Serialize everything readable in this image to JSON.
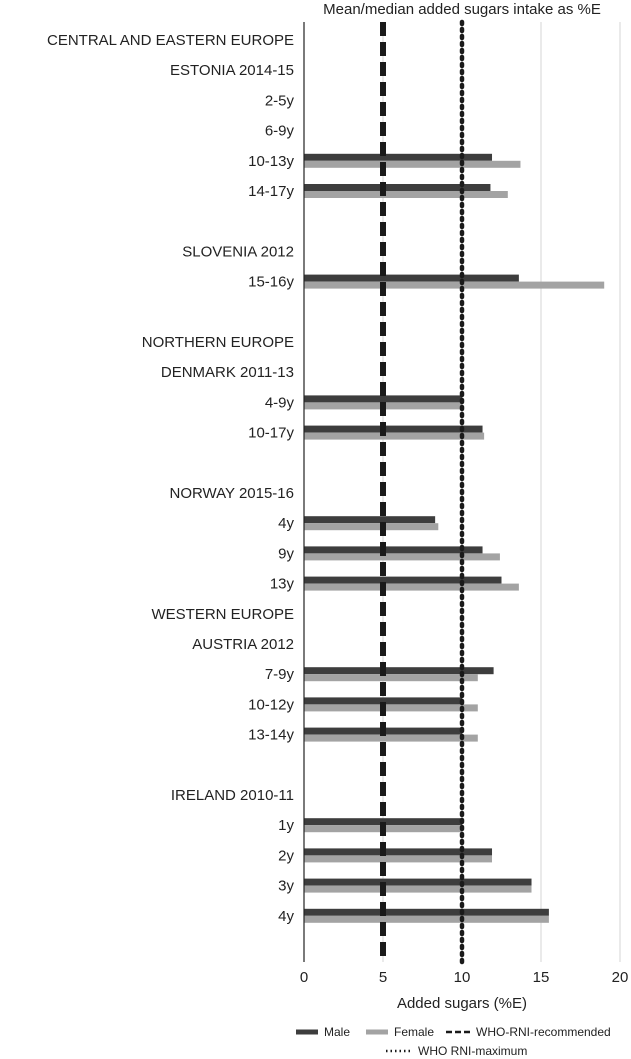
{
  "chart_data": {
    "type": "bar",
    "orientation": "horizontal",
    "title": "Mean/median added sugars intake as %E",
    "xlabel": "Added sugars (%E)",
    "ylabel": "",
    "xlim": [
      0,
      20
    ],
    "xticks": [
      0,
      5,
      10,
      15,
      20
    ],
    "grid": "vertical",
    "legend_position": "bottom",
    "categories": [
      "CENTRAL AND EASTERN EUROPE",
      "ESTONIA 2014-15",
      "2-5y",
      "6-9y",
      "10-13y",
      "14-17y",
      "",
      "SLOVENIA 2012",
      "15-16y",
      "",
      "NORTHERN EUROPE",
      "DENMARK 2011-13",
      "4-9y",
      "10-17y",
      "",
      "NORWAY 2015-16",
      "4y",
      "9y",
      "13y",
      "WESTERN EUROPE",
      "AUSTRIA 2012",
      "7-9y",
      "10-12y",
      "13-14y",
      "",
      "IRELAND 2010-11",
      "1y",
      "2y",
      "3y",
      "4y",
      ""
    ],
    "series": [
      {
        "name": "Male",
        "color": "#3d3d3d",
        "values": [
          null,
          null,
          null,
          null,
          11.9,
          11.8,
          null,
          null,
          13.6,
          null,
          null,
          null,
          10.0,
          11.3,
          null,
          null,
          8.3,
          11.3,
          12.5,
          null,
          null,
          12.0,
          10.0,
          10.0,
          null,
          null,
          10.0,
          11.9,
          14.4,
          15.5,
          null
        ]
      },
      {
        "name": "Female",
        "color": "#a3a3a3",
        "values": [
          null,
          null,
          null,
          null,
          13.7,
          12.9,
          null,
          null,
          19.0,
          null,
          null,
          null,
          10.0,
          11.4,
          null,
          null,
          8.5,
          12.4,
          13.6,
          null,
          null,
          11.0,
          11.0,
          11.0,
          null,
          null,
          10.0,
          11.9,
          14.4,
          15.5,
          null
        ]
      }
    ],
    "reference_lines": [
      {
        "name": "WHO-RNI-recommended",
        "value": 5,
        "style": "dashed"
      },
      {
        "name": "WHO RNI-maximum",
        "value": 10,
        "style": "dotted"
      }
    ]
  },
  "legend": {
    "male": "Male",
    "female": "Female",
    "recommended": "WHO-RNI-recommended",
    "maximum": "WHO RNI-maximum"
  },
  "colors": {
    "male": "#3d3d3d",
    "female": "#a3a3a3",
    "grid": "#d4d4d4",
    "axis": "#222222",
    "reference": "#1a1a1a"
  }
}
